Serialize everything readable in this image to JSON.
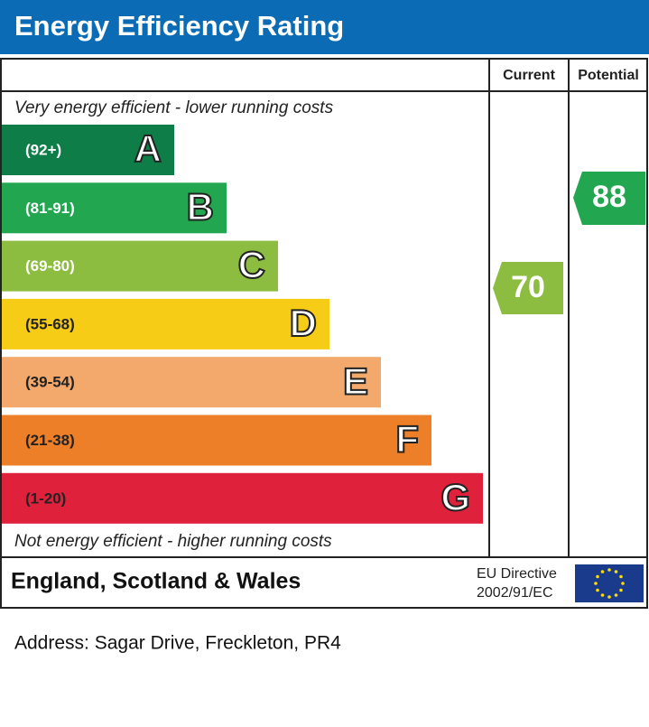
{
  "header": {
    "title": "Energy Efficiency Rating"
  },
  "columns": [
    "Current",
    "Potential"
  ],
  "top_note": "Very energy efficient - lower running costs",
  "bands": [
    {
      "range": "(92+)",
      "letter": "A",
      "color": "#0f7d47"
    },
    {
      "range": "(81-91)",
      "letter": "B",
      "color": "#22a650"
    },
    {
      "range": "(69-80)",
      "letter": "C",
      "color": "#8dbd40"
    },
    {
      "range": "(55-68)",
      "letter": "D",
      "color": "#f6cc17"
    },
    {
      "range": "(39-54)",
      "letter": "E",
      "color": "#f2a96b"
    },
    {
      "range": "(21-38)",
      "letter": "F",
      "color": "#ec7f27"
    },
    {
      "range": "(1-20)",
      "letter": "G",
      "color": "#e0213c"
    }
  ],
  "bottom_note": "Not energy efficient - higher running costs",
  "current": "70",
  "potential": "88",
  "footer": {
    "region": "England, Scotland & Wales",
    "directive_line1": "EU Directive",
    "directive_line2": "2002/91/EC"
  },
  "address": "Address: Sagar Drive, Freckleton, PR4"
}
